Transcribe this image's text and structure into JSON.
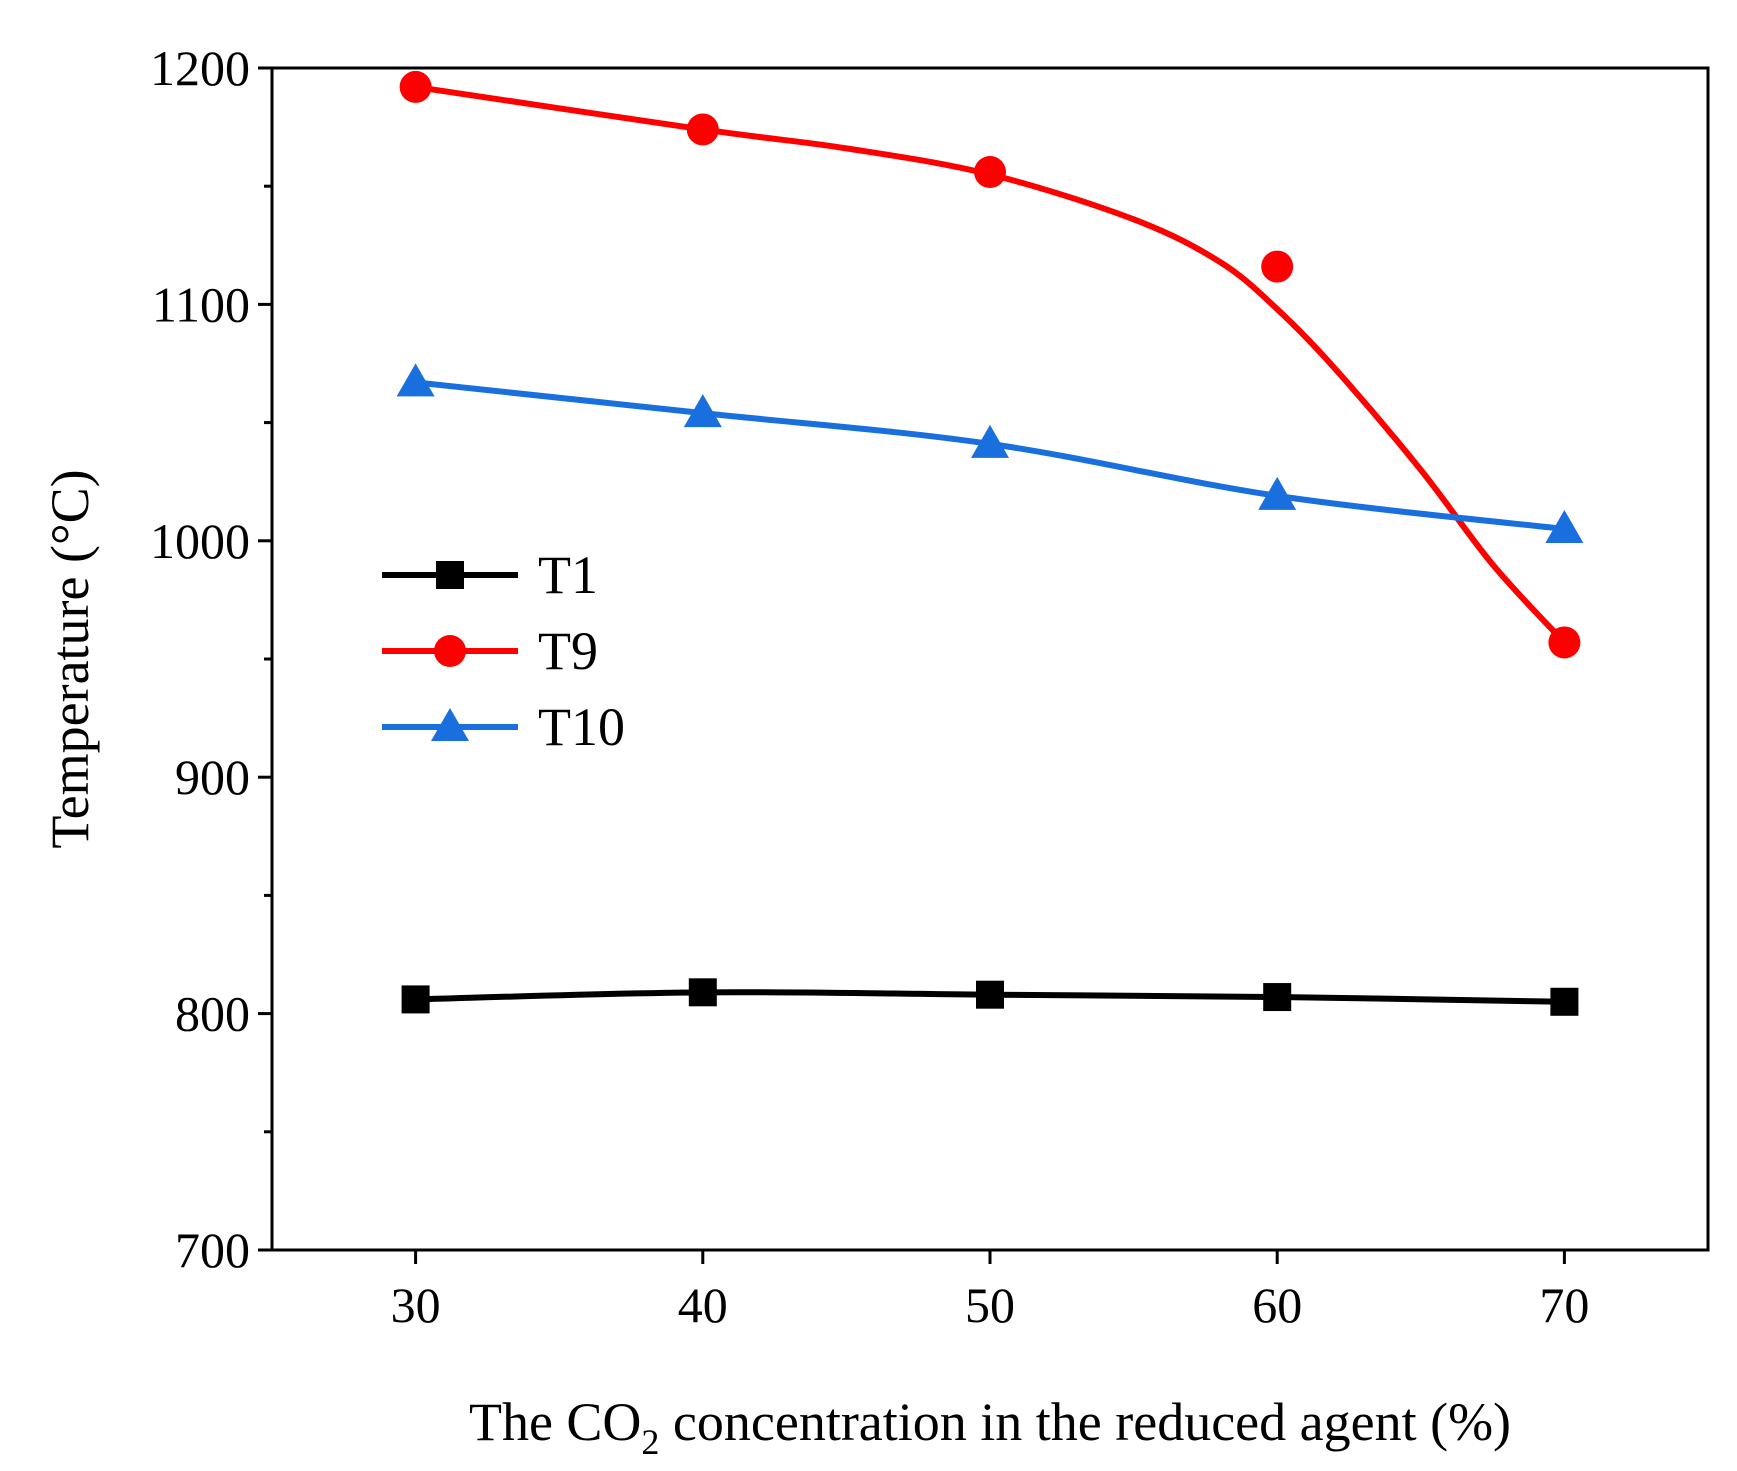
{
  "chart_data": {
    "type": "line",
    "title": "",
    "xlabel_parts": [
      "The CO",
      "2",
      " concentration in the reduced agent (%)"
    ],
    "ylabel": "Temperature (°C)",
    "xlim": [
      25,
      75
    ],
    "ylim": [
      700,
      1200
    ],
    "xticks": [
      30,
      40,
      50,
      60,
      70
    ],
    "yticks": [
      700,
      800,
      900,
      1000,
      1100,
      1200
    ],
    "y_minor_step": 50,
    "legend_position": "center-left",
    "x": [
      30,
      40,
      50,
      60,
      70
    ],
    "series": [
      {
        "name": "T1",
        "marker": "square",
        "color": "#000000",
        "values": [
          806,
          809,
          808,
          807,
          805
        ],
        "fit_curve": [
          [
            30,
            806
          ],
          [
            40,
            809
          ],
          [
            50,
            808
          ],
          [
            60,
            807
          ],
          [
            70,
            805
          ]
        ]
      },
      {
        "name": "T9",
        "marker": "circle",
        "color": "#ff0000",
        "values": [
          1192,
          1174,
          1156,
          1116,
          957
        ],
        "fit_curve": [
          [
            30,
            1192
          ],
          [
            40,
            1174
          ],
          [
            45,
            1166
          ],
          [
            50,
            1155
          ],
          [
            55,
            1136
          ],
          [
            58,
            1118
          ],
          [
            60,
            1098
          ],
          [
            62,
            1073
          ],
          [
            65,
            1030
          ],
          [
            67.5,
            990
          ],
          [
            70,
            957
          ]
        ]
      },
      {
        "name": "T10",
        "marker": "triangle",
        "color": "#1a6fdf",
        "values": [
          1067,
          1054,
          1041,
          1019,
          1005
        ],
        "fit_curve": [
          [
            30,
            1067
          ],
          [
            40,
            1054
          ],
          [
            50,
            1041
          ],
          [
            60,
            1019
          ],
          [
            70,
            1005
          ]
        ]
      }
    ]
  }
}
